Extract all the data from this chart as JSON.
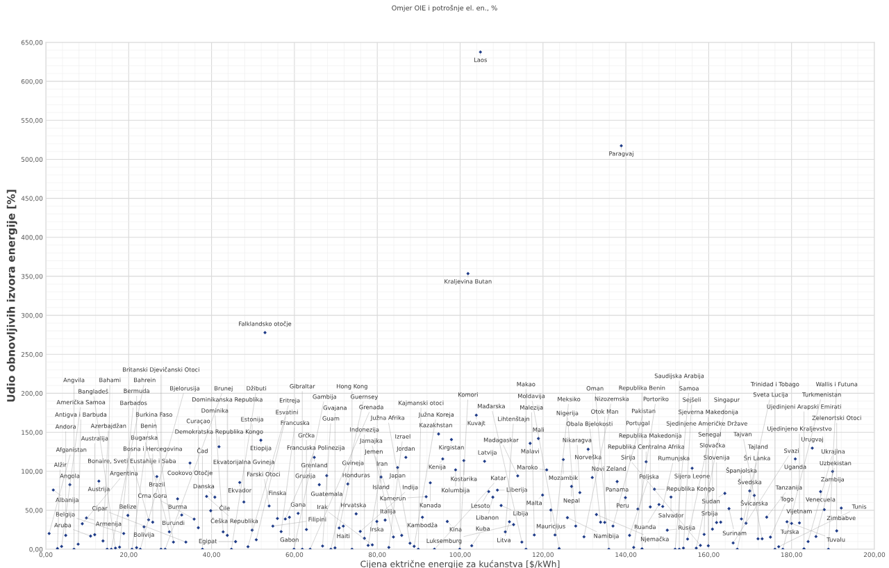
{
  "chart_data": {
    "type": "scatter",
    "title": "Omjer OIE i potrošnje el. en., %",
    "xlabel": "Cijena ektrične energije za kućanstva [$/kWh]",
    "ylabel": "Udio obnovljivih izvora energije [%]",
    "xlim": [
      0,
      200
    ],
    "xticks": [
      {
        "value": 0,
        "label": "0,00"
      },
      {
        "value": 20,
        "label": "20,00"
      },
      {
        "value": 40,
        "label": "40,00"
      },
      {
        "value": 60,
        "label": "60,00"
      },
      {
        "value": 80,
        "label": "80,00"
      },
      {
        "value": 100,
        "label": "100,00"
      },
      {
        "value": 120,
        "label": "120,00"
      },
      {
        "value": 140,
        "label": "140,00"
      },
      {
        "value": 160,
        "label": "160,00"
      },
      {
        "value": 180,
        "label": "180,00"
      },
      {
        "value": 200,
        "label": "200,00"
      }
    ],
    "ylim": [
      0,
      650
    ],
    "yticks": [
      {
        "value": 0,
        "label": "0,00"
      },
      {
        "value": 50,
        "label": "50,00"
      },
      {
        "value": 100,
        "label": "100,00"
      },
      {
        "value": 150,
        "label": "150,00"
      },
      {
        "value": 200,
        "label": "200,00"
      },
      {
        "value": 250,
        "label": "250,00"
      },
      {
        "value": 300,
        "label": "300,00"
      },
      {
        "value": 350,
        "label": "350,00"
      },
      {
        "value": 400,
        "label": "400,00"
      },
      {
        "value": 450,
        "label": "450,00"
      },
      {
        "value": 500,
        "label": "500,00"
      },
      {
        "value": 550,
        "label": "550,00"
      },
      {
        "value": 600,
        "label": "600,00"
      },
      {
        "value": 650,
        "label": "650,00"
      }
    ],
    "grid": true,
    "marker": "diamond",
    "series": [
      {
        "color": "#1f3c88",
        "x": [
          0.8,
          1.8,
          2.8,
          3.8,
          4.8,
          5.8,
          6.8,
          7.8,
          8.8,
          9.8,
          10.8,
          11.8,
          12.8,
          13.8,
          14.8,
          15.8,
          16.8,
          17.8,
          18.8,
          19.8,
          20.8,
          21.9,
          22.8,
          23.7,
          24.8,
          25.8,
          26.8,
          27.8,
          28.8,
          29.8,
          30.8,
          31.8,
          32.8,
          33.8,
          34.8,
          35.8,
          36.8,
          37.8,
          38.8,
          39.8,
          40.8,
          41.8,
          42.8,
          43.8,
          44.8,
          45.8,
          46.8,
          47.8,
          48.8,
          49.8,
          50.8,
          51.9,
          52.9,
          53.9,
          54.8,
          55.9,
          56.8,
          57.8,
          58.8,
          59.9,
          60.9,
          61.9,
          62.9,
          63.8,
          64.8,
          66.0,
          66.8,
          67.8,
          68.8,
          69.8,
          70.8,
          71.8,
          72.9,
          73.9,
          74.9,
          75.9,
          76.9,
          77.8,
          78.8,
          79.9,
          80.9,
          81.9,
          82.8,
          83.9,
          84.9,
          85.9,
          86.9,
          87.9,
          88.9,
          89.9,
          90.9,
          91.8,
          92.8,
          93.8,
          94.8,
          95.8,
          96.9,
          97.9,
          98.9,
          99.9,
          100.9,
          101.9,
          102.8,
          103.9,
          104.9,
          105.9,
          106.9,
          107.9,
          109.0,
          109.9,
          110.9,
          111.9,
          112.9,
          113.9,
          114.9,
          115.9,
          116.9,
          117.9,
          118.9,
          119.9,
          120.9,
          121.9,
          122.9,
          123.9,
          124.9,
          125.9,
          126.9,
          127.9,
          128.9,
          129.9,
          130.9,
          131.9,
          132.9,
          133.9,
          134.9,
          135.9,
          136.9,
          137.9,
          138.9,
          139.9,
          140.9,
          141.9,
          142.9,
          143.9,
          144.9,
          145.9,
          146.9,
          148.0,
          148.9,
          150.0,
          150.9,
          151.9,
          152.9,
          153.9,
          154.9,
          156.0,
          157.0,
          158.0,
          158.9,
          159.9,
          160.9,
          161.9,
          162.9,
          163.9,
          164.9,
          165.9,
          166.9,
          167.9,
          169.0,
          169.9,
          171.0,
          171.9,
          172.9,
          174.0,
          174.9,
          176.0,
          176.9,
          177.9,
          178.9,
          180.0,
          180.9,
          181.9,
          183.0,
          184.0,
          185.0,
          185.9,
          187.0,
          187.9,
          188.9,
          189.9,
          190.9,
          192.0
        ],
        "values": [
          20.2,
          76.0,
          0.9,
          3.6,
          17.8,
          82.8,
          0,
          6.5,
          32.7,
          40.1,
          16.9,
          18.7,
          87.3,
          10.7,
          0,
          0,
          1.5,
          2.7,
          20.2,
          43.4,
          0,
          2.1,
          0,
          28.8,
          37.8,
          34.7,
          93.2,
          0,
          0,
          22.3,
          9.2,
          64.6,
          43.9,
          9.2,
          110.6,
          38.7,
          27.6,
          0,
          67.7,
          49.4,
          66.8,
          131.5,
          22.3,
          17.8,
          0,
          9.8,
          85.6,
          60.6,
          3.3,
          24.5,
          12.2,
          139.8,
          277.8,
          55.5,
          29.7,
          39.5,
          22.6,
          38.8,
          41.0,
          0,
          46.0,
          0,
          25.3,
          0,
          117.8,
          82.8,
          4.2,
          94.4,
          0,
          1.8,
          27.3,
          29.7,
          83.7,
          0,
          45.4,
          22.9,
          14.0,
          5.0,
          5.6,
          35.6,
          92.6,
          37.4,
          2.4,
          15.7,
          104.8,
          17.8,
          117.8,
          7.7,
          3.8,
          0,
          41.0,
          67.4,
          85.2,
          0,
          147.8,
          115.8,
          35.6,
          140.7,
          101.8,
          0,
          113.7,
          353.5,
          4.5,
          171.9,
          637.6,
          112.8,
          74.0,
          66.8,
          75.8,
          56.1,
          22.3,
          35.2,
          31.6,
          94.1,
          9.2,
          0,
          135.8,
          18.3,
          142.0,
          69.5,
          101.8,
          50.3,
          18.3,
          0.9,
          115.0,
          40.5,
          80.6,
          29.8,
          72.6,
          16.0,
          128.2,
          92.0,
          44.5,
          34.7,
          34.4,
          0,
          29.8,
          86.8,
          517.4,
          66.2,
          17.8,
          2.4,
          51.6,
          0.6,
          112.2,
          54.3,
          77.0,
          57.4,
          54.8,
          24.5,
          66.9,
          0,
          0,
          1.5,
          13.1,
          103.9,
          1.5,
          5.0,
          19.1,
          4.5,
          25.8,
          34.3,
          34.7,
          71.7,
          52.1,
          8.1,
          0,
          38.9,
          33.4,
          74.8,
          69.0,
          13.4,
          13.4,
          41.2,
          15.6,
          0,
          3.3,
          0,
          35.2,
          33.1,
          115.8,
          33.8,
          0.6,
          9.9,
          129.7,
          16.3,
          73.9,
          50.8,
          0,
          99.7,
          23.6,
          52.8
        ],
        "value_labels": [
          "Afganistan",
          "Albanija",
          "Alžir",
          "Američka Samoa",
          "Andora",
          "Angola",
          "Angvila",
          "Antigva i Barbuda",
          "Argentina",
          "Armenija",
          "Aruba",
          "Australija",
          "Austrija",
          "Azerbajdžan",
          "Bahami",
          "Bahrein",
          "Bangladeš",
          "Barbados",
          "Belgija",
          "Belize",
          "Benin",
          "Bermuda",
          "Bjelorusija",
          "Bolivija",
          "Bonaire, Sveti Eustahije i Saba",
          "Bosna i Hercegovina",
          "Brazil",
          "Britanski Djevičanski Otoci",
          "Brunej",
          "Bugarska",
          "Burkina Faso",
          "Burma",
          "Burundi",
          "Cipar",
          "Cookovo Otočje",
          "Crna Gora",
          "Curaçao",
          "Čad",
          "Češka Republika",
          "Čile",
          "Danska",
          "Demokratska Republika Kongo",
          "Dominika",
          "Dominikanska Republika",
          "Džibuti",
          "Egipat",
          "Ekvador",
          "Ekvatorijalna Gvineja",
          "Eritreja",
          "Estonija",
          "Esvatini",
          "Etiopija",
          "Falklandsko otočje",
          "Farski Otoci",
          "Filipini",
          "Finska",
          "Francuska",
          "Francuska Polinezija",
          "Gabon",
          "Gambija",
          "Gana",
          "Gibraltar",
          "Grčka",
          "Grenada",
          "Grenland",
          "Gruzija",
          "Guam",
          "Guatemala",
          "Guernsey",
          "Gvajana",
          "Gvineja",
          "Haiti",
          "Honduras",
          "Hong Kong",
          "Hrvatska",
          "Indija",
          "Indonezija",
          "Iran",
          "Irak",
          "Irska",
          "Island",
          "Italija",
          "Izrael",
          "Jamajka",
          "Japan",
          "Jemen",
          "Jordan",
          "Južna Afrika",
          "Južna Koreja",
          "Kajmanski otoci",
          "Kambodža",
          "Kamerun",
          "Kanada",
          "Katar",
          "Kazakhstan",
          "Kenija",
          "Kina",
          "Kirgistan",
          "Kolumbija",
          "Komori",
          "Kostarika",
          "Kraljevina Butan",
          "Kuba",
          "Kuvajt",
          "Laos",
          "Latvija",
          "Lesoto",
          "Libanon",
          "Liberija",
          "Libija",
          "Lihtenštajn",
          "Litva",
          "Luksemburg",
          "Madagaskar",
          "Mađarska",
          "Makao",
          "Malavi",
          "Malezija",
          "Mali",
          "Malta",
          "Maroko",
          "Mauricijus",
          "Meksiko",
          "Moldavija",
          "Mozambik",
          "Namibija",
          "Nepal",
          "Nigerija",
          "Nikaragva",
          "Nizozemska",
          "Norveška",
          "Novi Zeland",
          "Njemačka",
          "Obala Bjelokosti",
          "Otok Man",
          "Oman",
          "Pakistan",
          "Panama",
          "Paragvaj",
          "Peru",
          "Poljska",
          "Portoriko",
          "Portugal",
          "Republika Benin",
          "Republika Centralna Afrika",
          "Republika Makedonija",
          "Republika Kongo",
          "Ruanda",
          "Rumunjska",
          "Rusija",
          "Salvador",
          "Samoa",
          "Saudijska Arabija",
          "Sejšeli",
          "Senegal",
          "Sijera Leone",
          "Singapur",
          "Sirija",
          "Sjedinjene Američke Države",
          "Sjeverna Makedonija",
          "Slovačka",
          "Slovenija",
          "Srbija",
          "Sudan",
          "Surinam",
          "Svazi",
          "Sveta Lucija",
          "Španjolska",
          "Šri Lanka",
          "Švedska",
          "Švicarska",
          "Tajland",
          "Tajvan",
          "Tanzanija",
          "Togo",
          "Trinidad i Tobago",
          "Tunis",
          "Turkmenistan",
          "Turska",
          "Tuvalu",
          "Uganda",
          "Ujedinjeno Kraljevstvo",
          "Ujedinjeni Arapski Emirati",
          "Ukrajina",
          "Urugvaj",
          "Uzbekistan",
          "Venecuela",
          "Vijetnam",
          "Wallis i Futuna",
          "Zambija",
          "Zelenortski Otoci",
          "Zimbabve"
        ]
      }
    ]
  }
}
